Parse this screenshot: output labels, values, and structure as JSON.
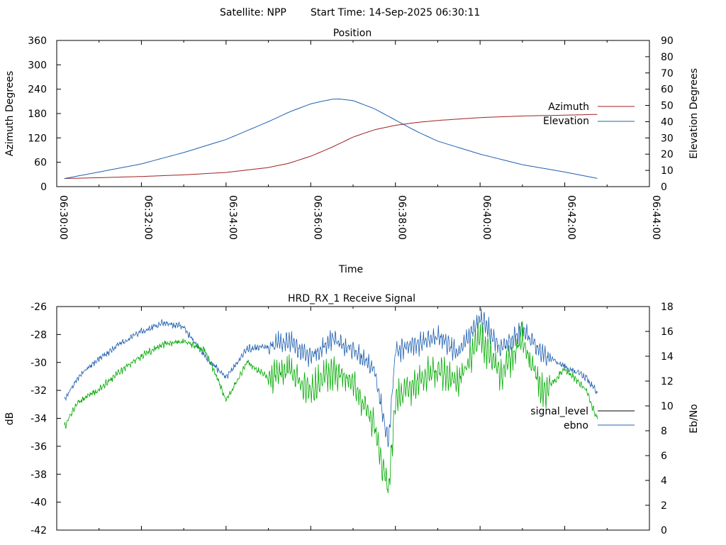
{
  "header": {
    "satellite": "Satellite: NPP",
    "start_time": "Start Time: 14-Sep-2025 06:30:11"
  },
  "colors": {
    "azimuth": "#a02020",
    "elevation": "#2060b0",
    "signal_level": "#000000",
    "ebno_plot": "#2060b0",
    "green_trace": "#00aa00",
    "ebno_legend": "#2060b0"
  },
  "chart_data": [
    {
      "type": "line",
      "title": "Position",
      "xlabel": "Time",
      "ylabel": "Azimuth Degrees",
      "y2label": "Elevation Degrees",
      "xlim": [
        "06:30:00",
        "06:44:00"
      ],
      "ylim": [
        0,
        360
      ],
      "y2lim": [
        0,
        90
      ],
      "x_ticks": [
        "06:30:00",
        "06:32:00",
        "06:34:00",
        "06:36:00",
        "06:38:00",
        "06:40:00",
        "06:42:00",
        "06:44:00"
      ],
      "y_ticks": [
        "0",
        "60",
        "120",
        "180",
        "240",
        "300",
        "360"
      ],
      "y2_ticks": [
        "0",
        "10",
        "20",
        "30",
        "40",
        "50",
        "60",
        "70",
        "80",
        "90"
      ],
      "legend_position": "right",
      "series": [
        {
          "name": "Azimuth",
          "axis": "left",
          "color_key": "azimuth",
          "x": [
            "06:30:11",
            "06:31:00",
            "06:32:00",
            "06:33:00",
            "06:34:00",
            "06:35:00",
            "06:35:30",
            "06:36:00",
            "06:36:30",
            "06:37:00",
            "06:37:30",
            "06:38:00",
            "06:38:30",
            "06:39:00",
            "06:40:00",
            "06:41:00",
            "06:42:00",
            "06:42:47"
          ],
          "values": [
            20,
            22,
            25,
            29,
            35,
            47,
            58,
            75,
            97,
            122,
            140,
            151,
            158,
            163,
            170,
            174,
            176,
            178
          ]
        },
        {
          "name": "Elevation",
          "axis": "right",
          "color_key": "elevation",
          "x": [
            "06:30:11",
            "06:31:00",
            "06:32:00",
            "06:33:00",
            "06:34:00",
            "06:35:00",
            "06:35:30",
            "06:36:00",
            "06:36:30",
            "06:36:40",
            "06:37:00",
            "06:37:30",
            "06:38:00",
            "06:38:30",
            "06:39:00",
            "06:40:00",
            "06:41:00",
            "06:42:00",
            "06:42:47"
          ],
          "values": [
            5,
            9,
            14,
            21,
            29,
            40,
            46,
            51,
            53.8,
            54,
            53,
            48,
            41,
            34,
            28,
            20,
            13.5,
            9,
            5
          ]
        }
      ]
    },
    {
      "type": "line",
      "title": "HRD_RX_1 Receive Signal",
      "ylabel": "dB",
      "y2label": "Eb/No",
      "ylim": [
        -42,
        -26
      ],
      "y2lim": [
        0,
        18
      ],
      "xlim": [
        "06:30:00",
        "06:44:00"
      ],
      "y_ticks": [
        "-26",
        "-28",
        "-30",
        "-32",
        "-34",
        "-36",
        "-38",
        "-40",
        "-42"
      ],
      "y2_ticks": [
        "0",
        "2",
        "4",
        "6",
        "8",
        "10",
        "12",
        "14",
        "16",
        "18"
      ],
      "legend_position": "right",
      "series": [
        {
          "name": "signal_level",
          "axis": "left",
          "color_key": "signal_level"
        },
        {
          "name": "ebno",
          "axis": "right",
          "color_key": "ebno_legend"
        }
      ],
      "traces": [
        {
          "axis": "right",
          "color_key": "ebno_plot",
          "x": [
            "06:30:11",
            "06:30:30",
            "06:31:00",
            "06:31:30",
            "06:32:00",
            "06:32:30",
            "06:33:00",
            "06:33:30",
            "06:34:00",
            "06:34:30",
            "06:35:00",
            "06:35:30",
            "06:36:00",
            "06:36:30",
            "06:37:00",
            "06:37:30",
            "06:37:50",
            "06:38:00",
            "06:38:30",
            "06:39:00",
            "06:39:30",
            "06:40:00",
            "06:40:30",
            "06:41:00",
            "06:41:30",
            "06:42:00",
            "06:42:30",
            "06:42:47"
          ],
          "values": [
            10.5,
            12.3,
            13.8,
            15.0,
            16.0,
            16.6,
            16.4,
            14.0,
            12.3,
            14.6,
            14.8,
            15.2,
            14.0,
            15.3,
            14.6,
            13.0,
            7.0,
            14.5,
            15.0,
            15.6,
            14.2,
            17.1,
            14.6,
            16.2,
            14.1,
            13.2,
            12.3,
            11.0
          ]
        },
        {
          "axis": "right",
          "color_key": "green_trace",
          "x": [
            "06:30:11",
            "06:30:30",
            "06:31:00",
            "06:31:30",
            "06:32:00",
            "06:32:30",
            "06:33:00",
            "06:33:30",
            "06:34:00",
            "06:34:30",
            "06:35:00",
            "06:35:30",
            "06:36:00",
            "06:36:30",
            "06:37:00",
            "06:37:30",
            "06:37:50",
            "06:38:00",
            "06:38:30",
            "06:39:00",
            "06:39:30",
            "06:40:00",
            "06:40:30",
            "06:41:00",
            "06:41:30",
            "06:42:00",
            "06:42:30",
            "06:42:47"
          ],
          "values": [
            8.3,
            10.3,
            11.3,
            12.8,
            14.0,
            15.0,
            15.2,
            14.5,
            10.5,
            13.5,
            12.3,
            12.8,
            11.2,
            12.8,
            12.0,
            8.3,
            3.0,
            10.5,
            12.0,
            12.8,
            12.0,
            15.5,
            12.6,
            15.3,
            11.0,
            13.0,
            11.3,
            8.8
          ]
        }
      ]
    }
  ]
}
